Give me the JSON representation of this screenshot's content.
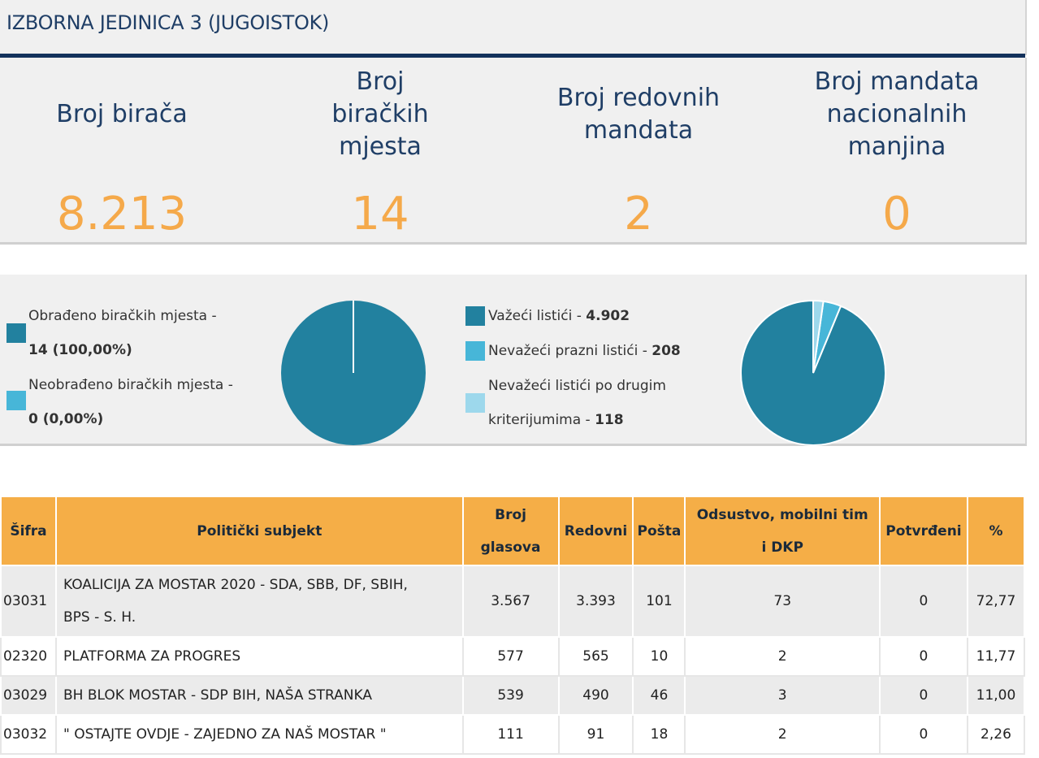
{
  "header": {
    "title": "IZBORNA JEDINICA 3 (JUGOISTOK)"
  },
  "stats": [
    {
      "label": "Broj birača",
      "value": "8.213"
    },
    {
      "label": "Broj biračkih mjesta",
      "value": "14"
    },
    {
      "label": "Broj redovnih mandata",
      "value": "2"
    },
    {
      "label": "Broj mandata nacionalnih manjina",
      "value": "0"
    }
  ],
  "processing": {
    "processed_label": "Obrađeno biračkih mjesta -",
    "processed_value": "14 (100,00%)",
    "unprocessed_label": "Neobrađeno biračkih mjesta -",
    "unprocessed_value": "0 (0,00%)",
    "processed_fraction": 1.0
  },
  "ballots": {
    "valid_label": "Važeći listići -",
    "valid_value": "4.902",
    "blank_label": "Nevažeći prazni listići -",
    "blank_value": "208",
    "other_label_1": "Nevažeći listići po drugim",
    "other_label_2": "kriterijumima -",
    "other_value": "118",
    "counts": [
      4902,
      208,
      118
    ]
  },
  "colors": {
    "valid": "#22819f",
    "blank": "#47b6d8",
    "other": "#9dd8ec",
    "accent": "#f5ae47",
    "stat_value": "#f5a94a",
    "navy": "#14325c"
  },
  "table": {
    "headers": {
      "code": "Šifra",
      "subject": "Politički subjekt",
      "votes_1": "Broj",
      "votes_2": "glasova",
      "regular": "Redovni",
      "mail": "Pošta",
      "absent_1": "Odsustvo, mobilni tim",
      "absent_2": "i DKP",
      "confirmed": "Potvrđeni",
      "percent": "%"
    },
    "rows": [
      {
        "code": "03031",
        "subject_1": "KOALICIJA ZA MOSTAR 2020 - SDA, SBB, DF, SBIH,",
        "subject_2": "BPS - S. H.",
        "votes": "3.567",
        "regular": "3.393",
        "mail": "101",
        "absent": "73",
        "confirmed": "0",
        "percent": "72,77"
      },
      {
        "code": "02320",
        "subject_1": "PLATFORMA ZA PROGRES",
        "subject_2": "",
        "votes": "577",
        "regular": "565",
        "mail": "10",
        "absent": "2",
        "confirmed": "0",
        "percent": "11,77"
      },
      {
        "code": "03029",
        "subject_1": "BH BLOK MOSTAR - SDP BIH, NAŠA STRANKA",
        "subject_2": "",
        "votes": "539",
        "regular": "490",
        "mail": "46",
        "absent": "3",
        "confirmed": "0",
        "percent": "11,00"
      },
      {
        "code": "03032",
        "subject_1": "\" OSTAJTE OVDJE - ZAJEDNO ZA NAŠ MOSTAR \"",
        "subject_2": "",
        "votes": "111",
        "regular": "91",
        "mail": "18",
        "absent": "2",
        "confirmed": "0",
        "percent": "2,26"
      }
    ]
  }
}
